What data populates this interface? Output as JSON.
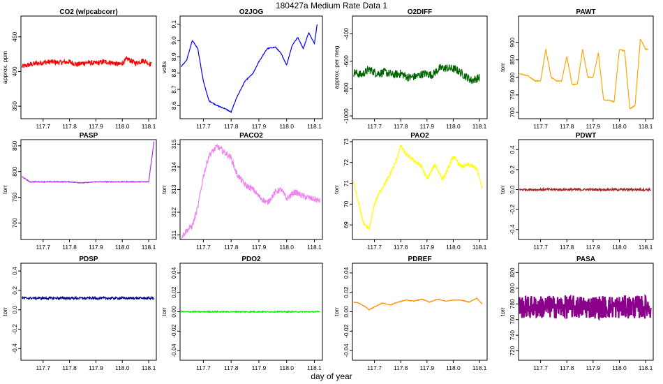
{
  "figure": {
    "title": "180427a   Medium Rate Data 1",
    "xlabel": "day of year"
  },
  "chart_data": [
    {
      "type": "line",
      "title": "CO2 (w/pcabcorr)",
      "ylabel": "approx. ppm",
      "color": "#ff0000",
      "xlim": [
        117.616,
        118.129
      ],
      "ylim": [
        332,
        480
      ],
      "yticks": [
        350,
        400,
        450
      ],
      "yticklabels": [
        "350",
        "400",
        "450"
      ],
      "xticks": [
        117.7,
        117.8,
        117.9,
        118.0,
        118.1
      ],
      "xticklabels": [
        "117.7",
        "117.8",
        "117.9",
        "118.0",
        "118.1"
      ],
      "x": [
        117.62,
        117.65,
        117.68,
        117.7,
        117.73,
        117.76,
        117.8,
        117.83,
        117.86,
        117.9,
        117.93,
        117.96,
        117.99,
        118.02,
        118.05,
        118.08,
        118.11
      ],
      "y": [
        407,
        410,
        412,
        413,
        414,
        413,
        414,
        410,
        413,
        412,
        414,
        413,
        410,
        418,
        412,
        416,
        410
      ]
    },
    {
      "type": "line",
      "title": "O2JOG",
      "ylabel": "volts",
      "color": "#0000ff",
      "xlim": [
        117.616,
        118.129
      ],
      "ylim": [
        8.52,
        9.15
      ],
      "yticks": [
        8.6,
        8.7,
        8.8,
        8.9,
        9.0,
        9.1
      ],
      "yticklabels": [
        "8.6",
        "8.7",
        "8.8",
        "8.9",
        "9.0",
        "9.1"
      ],
      "xticks": [
        117.7,
        117.8,
        117.9,
        118.0,
        118.1
      ],
      "xticklabels": [
        "117.7",
        "117.8",
        "117.9",
        "118.0",
        "118.1"
      ],
      "x": [
        117.62,
        117.64,
        117.66,
        117.68,
        117.7,
        117.72,
        117.75,
        117.78,
        117.8,
        117.82,
        117.85,
        117.88,
        117.9,
        117.93,
        117.96,
        117.98,
        118.0,
        118.02,
        118.04,
        118.06,
        118.08,
        118.1,
        118.11
      ],
      "y": [
        8.84,
        8.88,
        9.0,
        8.95,
        8.75,
        8.63,
        8.6,
        8.58,
        8.56,
        8.65,
        8.75,
        8.8,
        8.87,
        8.95,
        8.96,
        8.92,
        8.85,
        8.97,
        9.02,
        8.95,
        9.05,
        8.98,
        9.1
      ]
    },
    {
      "type": "line",
      "title": "O2DIFF",
      "ylabel": "approx. per meg",
      "color": "#006400",
      "xlim": [
        117.616,
        118.129
      ],
      "ylim": [
        -1020,
        -270
      ],
      "yticks": [
        -1000,
        -800,
        -600,
        -400
      ],
      "yticklabels": [
        "-1000",
        "-800",
        "-600",
        "-400"
      ],
      "xticks": [
        117.7,
        117.8,
        117.9,
        118.0,
        118.1
      ],
      "xticklabels": [
        "117.7",
        "117.8",
        "117.9",
        "118.0",
        "118.1"
      ],
      "x": [
        117.62,
        117.65,
        117.68,
        117.71,
        117.74,
        117.77,
        117.8,
        117.83,
        117.86,
        117.89,
        117.92,
        117.95,
        117.98,
        118.01,
        118.04,
        118.07,
        118.1
      ],
      "y": [
        -680,
        -700,
        -660,
        -690,
        -680,
        -700,
        -690,
        -720,
        -710,
        -690,
        -700,
        -650,
        -650,
        -660,
        -700,
        -740,
        -720
      ]
    },
    {
      "type": "line",
      "title": "PAWT",
      "ylabel": "torr",
      "color": "#ffa500",
      "xlim": [
        117.616,
        118.129
      ],
      "ylim": [
        682,
        975
      ],
      "yticks": [
        700,
        750,
        800,
        850,
        900
      ],
      "yticklabels": [
        "700",
        "750",
        "800",
        "850",
        "900"
      ],
      "xticks": [
        117.7,
        117.8,
        117.9,
        118.0,
        118.1
      ],
      "xticklabels": [
        "117.7",
        "117.8",
        "117.9",
        "118.0",
        "118.1"
      ],
      "x": [
        117.62,
        117.65,
        117.68,
        117.7,
        117.72,
        117.74,
        117.76,
        117.78,
        117.8,
        117.82,
        117.84,
        117.86,
        117.88,
        117.9,
        117.92,
        117.94,
        117.96,
        117.98,
        118.0,
        118.02,
        118.04,
        118.06,
        118.08,
        118.1,
        118.11
      ],
      "y": [
        810,
        805,
        790,
        790,
        880,
        800,
        790,
        790,
        860,
        780,
        780,
        880,
        800,
        800,
        870,
        735,
        735,
        730,
        880,
        875,
        710,
        720,
        910,
        880,
        880
      ]
    },
    {
      "type": "line",
      "title": "PASP",
      "ylabel": "torr",
      "color": "#b030e0",
      "xlim": [
        117.616,
        118.129
      ],
      "ylim": [
        668,
        862
      ],
      "yticks": [
        700,
        750,
        800,
        850
      ],
      "yticklabels": [
        "700",
        "750",
        "800",
        "850"
      ],
      "xticks": [
        117.7,
        117.8,
        117.9,
        118.0,
        118.1
      ],
      "xticklabels": [
        "117.7",
        "117.8",
        "117.9",
        "118.0",
        "118.1"
      ],
      "x": [
        117.62,
        117.65,
        117.7,
        117.75,
        117.8,
        117.85,
        117.9,
        117.95,
        118.0,
        118.05,
        118.1,
        118.12
      ],
      "y": [
        790,
        780,
        780,
        780,
        780,
        778,
        780,
        780,
        780,
        780,
        780,
        858
      ]
    },
    {
      "type": "line",
      "title": "PACO2",
      "ylabel": "torr",
      "color": "#ee82ee",
      "xlim": [
        117.616,
        118.129
      ],
      "ylim": [
        310.8,
        315.2
      ],
      "yticks": [
        311,
        312,
        313,
        314,
        315
      ],
      "yticklabels": [
        "311",
        "312",
        "313",
        "314",
        "315"
      ],
      "xticks": [
        117.7,
        117.8,
        117.9,
        118.0,
        118.1
      ],
      "xticklabels": [
        "117.7",
        "117.8",
        "117.9",
        "118.0",
        "118.1"
      ],
      "x": [
        117.62,
        117.64,
        117.66,
        117.68,
        117.7,
        117.72,
        117.75,
        117.78,
        117.8,
        117.82,
        117.85,
        117.88,
        117.9,
        117.93,
        117.96,
        117.98,
        118.0,
        118.03,
        118.06,
        118.09,
        118.12
      ],
      "y": [
        310.9,
        311.2,
        311.4,
        312.2,
        313.6,
        314.5,
        314.9,
        314.6,
        314.4,
        313.7,
        313.2,
        313.0,
        312.7,
        312.4,
        312.9,
        313.0,
        312.6,
        312.9,
        312.7,
        312.6,
        312.5
      ]
    },
    {
      "type": "line",
      "title": "PAO2",
      "ylabel": "torr",
      "color": "#ffff00",
      "xlim": [
        117.616,
        118.129
      ],
      "ylim": [
        68.3,
        73.1
      ],
      "yticks": [
        69,
        70,
        71,
        72,
        73
      ],
      "yticklabels": [
        "69",
        "70",
        "71",
        "72",
        "73"
      ],
      "xticks": [
        117.7,
        117.8,
        117.9,
        118.0,
        118.1
      ],
      "xticklabels": [
        "117.7",
        "117.8",
        "117.9",
        "118.0",
        "118.1"
      ],
      "x": [
        117.62,
        117.64,
        117.66,
        117.68,
        117.7,
        117.72,
        117.75,
        117.78,
        117.8,
        117.82,
        117.85,
        117.88,
        117.9,
        117.93,
        117.96,
        117.98,
        118.0,
        118.03,
        118.06,
        118.09,
        118.11
      ],
      "y": [
        71.1,
        70.0,
        69.0,
        68.8,
        70.0,
        70.6,
        71.2,
        72.0,
        72.8,
        72.4,
        72.1,
        71.8,
        71.2,
        71.9,
        71.2,
        71.7,
        72.3,
        71.8,
        71.9,
        71.7,
        70.8
      ]
    },
    {
      "type": "line",
      "title": "PDWT",
      "ylabel": "torr",
      "color": "#a52a2a",
      "xlim": [
        117.616,
        118.129
      ],
      "ylim": [
        -0.5,
        0.5
      ],
      "yticks": [
        -0.4,
        -0.2,
        0.0,
        0.2,
        0.4
      ],
      "yticklabels": [
        "-0.4",
        "-0.2",
        "0.0",
        "0.2",
        "0.4"
      ],
      "xticks": [
        117.7,
        117.8,
        117.9,
        118.0,
        118.1
      ],
      "xticklabels": [
        "117.7",
        "117.8",
        "117.9",
        "118.0",
        "118.1"
      ],
      "x": [
        117.62,
        118.12
      ],
      "y": [
        0.0,
        0.0
      ]
    },
    {
      "type": "line",
      "title": "PDSP",
      "ylabel": "torr",
      "color": "#00008b",
      "xlim": [
        117.616,
        118.129
      ],
      "ylim": [
        -0.52,
        0.48
      ],
      "yticks": [
        -0.4,
        -0.2,
        0.0,
        0.2,
        0.4
      ],
      "yticklabels": [
        "-0.4",
        "-0.2",
        "0.0",
        "0.2",
        "0.4"
      ],
      "xticks": [
        117.7,
        117.8,
        117.9,
        118.0,
        118.1
      ],
      "xticklabels": [
        "117.7",
        "117.8",
        "117.9",
        "118.0",
        "118.1"
      ],
      "x": [
        117.62,
        118.12
      ],
      "y": [
        0.12,
        0.12
      ]
    },
    {
      "type": "line",
      "title": "PDO2",
      "ylabel": "torr",
      "color": "#00ee00",
      "xlim": [
        117.616,
        118.129
      ],
      "ylim": [
        -0.05,
        0.05
      ],
      "yticks": [
        -0.04,
        -0.02,
        0.0,
        0.02,
        0.04
      ],
      "yticklabels": [
        "-0.04",
        "-0.02",
        "0.00",
        "0.02",
        "0.04"
      ],
      "xticks": [
        117.7,
        117.8,
        117.9,
        118.0,
        118.1
      ],
      "xticklabels": [
        "117.7",
        "117.8",
        "117.9",
        "118.0",
        "118.1"
      ],
      "x": [
        117.62,
        118.12
      ],
      "y": [
        0.0,
        0.0
      ]
    },
    {
      "type": "line",
      "title": "PDREF",
      "ylabel": "torr",
      "color": "#ff8c00",
      "xlim": [
        117.616,
        118.129
      ],
      "ylim": [
        -0.05,
        0.05
      ],
      "yticks": [
        -0.04,
        -0.02,
        0.0,
        0.02,
        0.04
      ],
      "yticklabels": [
        "-0.04",
        "-0.02",
        "0.00",
        "0.02",
        "0.04"
      ],
      "xticks": [
        117.7,
        117.8,
        117.9,
        118.0,
        118.1
      ],
      "xticklabels": [
        "117.7",
        "117.8",
        "117.9",
        "118.0",
        "118.1"
      ],
      "x": [
        117.62,
        117.64,
        117.66,
        117.68,
        117.7,
        117.73,
        117.76,
        117.79,
        117.82,
        117.85,
        117.88,
        117.91,
        117.94,
        117.97,
        118.0,
        118.03,
        118.06,
        118.09,
        118.11
      ],
      "y": [
        0.01,
        0.009,
        0.006,
        0.002,
        0.005,
        0.009,
        0.007,
        0.01,
        0.012,
        0.011,
        0.013,
        0.01,
        0.013,
        0.011,
        0.012,
        0.012,
        0.01,
        0.014,
        0.008
      ]
    },
    {
      "type": "line",
      "title": "PASA",
      "ylabel": "torr",
      "color": "#8b008b",
      "xlim": [
        117.616,
        118.129
      ],
      "ylim": [
        708,
        832
      ],
      "yticks": [
        720,
        740,
        760,
        780,
        800,
        820
      ],
      "yticklabels": [
        "720",
        "740",
        "760",
        "780",
        "800",
        "820"
      ],
      "xticks": [
        117.7,
        117.8,
        117.9,
        118.0,
        118.1
      ],
      "xticklabels": [
        "117.7",
        "117.8",
        "117.9",
        "118.0",
        "118.1"
      ],
      "x": [
        117.62,
        118.12
      ],
      "y": [
        776,
        776
      ]
    }
  ]
}
